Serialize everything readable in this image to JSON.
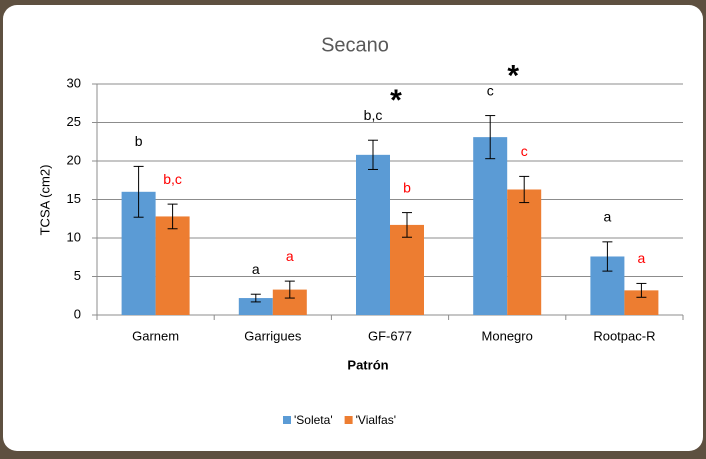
{
  "chart_data": {
    "type": "bar",
    "title": "Secano",
    "x_label": "Patrón",
    "y_label": "TCSA (cm2)",
    "categories": [
      "Garnem",
      "Garrigues",
      "GF-677",
      "Monegro",
      "Rootpac-R"
    ],
    "series": [
      {
        "name": "'Soleta'",
        "color": "#5b9bd5",
        "letter_color": "#000000",
        "values": [
          16.0,
          2.2,
          20.8,
          23.1,
          7.6
        ],
        "errors": [
          3.3,
          0.5,
          1.9,
          2.8,
          1.9
        ],
        "letters": [
          "b",
          "a",
          "b,c",
          "c",
          "a"
        ]
      },
      {
        "name": "'Vialfas'",
        "color": "#ed7d31",
        "letter_color": "#ff0000",
        "values": [
          12.8,
          3.3,
          11.7,
          16.3,
          3.2
        ],
        "errors": [
          1.6,
          1.1,
          1.6,
          1.7,
          0.9
        ],
        "letters": [
          "b,c",
          "a",
          "b",
          "c",
          "a"
        ]
      }
    ],
    "significance": [
      null,
      null,
      "*",
      "*",
      null
    ],
    "ylim": [
      0,
      30
    ],
    "yticks": [
      0,
      5,
      10,
      15,
      20,
      25,
      30
    ],
    "grid": true,
    "legend": "bottom"
  }
}
